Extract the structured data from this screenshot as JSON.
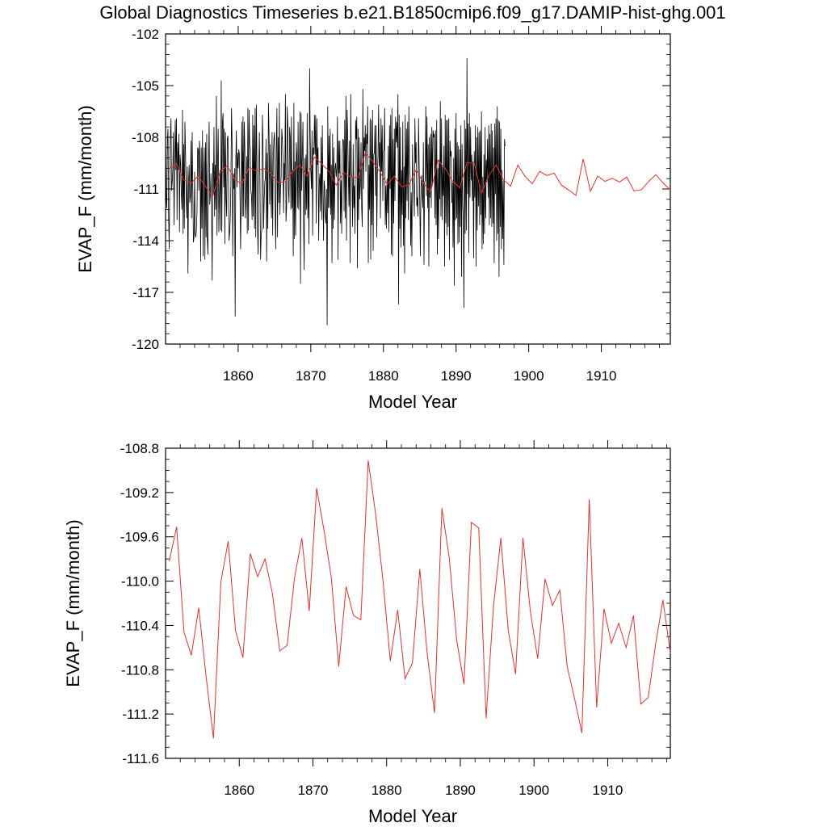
{
  "chart_data": [
    {
      "type": "line",
      "title": "Global Diagnostics Timeseries b.e21.B1850cmip6.f09_g17.DAMIP-hist-ghg.001",
      "xlabel": "Model Year",
      "ylabel": "EVAP_F (mm/month)",
      "xlim": [
        1850,
        1919.5
      ],
      "ylim": [
        -120,
        -102
      ],
      "yticks": [
        "-120",
        "-117",
        "-114",
        "-111",
        "-108",
        "-105",
        "-102"
      ],
      "xticks": [
        "1860",
        "1870",
        "1880",
        "1890",
        "1900",
        "1910"
      ],
      "grid": false,
      "series": [
        {
          "color": "#000000",
          "x_start": 1850.0,
          "x_step": 0.08333,
          "values": [
            -107.9,
            -111.4,
            -112.1,
            -108.1,
            -107.5,
            -112.5,
            -114.5,
            -110.5,
            -107.9,
            -106.9,
            -111.1,
            -110.6,
            -109.8,
            -107.7,
            -113.1,
            -110.0,
            -107.0,
            -109.9,
            -106.9,
            -112.8,
            -108.3,
            -109.9,
            -107.8,
            -113.5,
            -109.0,
            -109.6,
            -111.3,
            -112.2,
            -106.4,
            -113.6,
            -108.4,
            -113.3,
            -107.1,
            -108.9,
            -111.2,
            -112.7,
            -109.7,
            -115.9,
            -110.6,
            -109.6,
            -111.8,
            -111.4,
            -108.2,
            -112.7,
            -107.7,
            -111.0,
            -114.1,
            -113.8,
            -110.0,
            -113.6,
            -113.8,
            -113.4,
            -112.2,
            -108.6,
            -108.7,
            -111.1,
            -108.2,
            -109.1,
            -115.2,
            -108.6,
            -113.3,
            -107.6,
            -114.9,
            -110.0,
            -108.6,
            -115.1,
            -108.3,
            -113.8,
            -107.8,
            -113.9,
            -114.8,
            -109.9,
            -107.1,
            -111.9,
            -111.3,
            -110.1,
            -111.9,
            -116.3,
            -109.5,
            -111.3,
            -107.4,
            -112.6,
            -109.6,
            -112.2,
            -105.6,
            -113.7,
            -109.4,
            -107.5,
            -113.5,
            -111.4,
            -109.9,
            -113.4,
            -104.7,
            -113.5,
            -107.1,
            -106.6,
            -110.9,
            -107.5,
            -114.2,
            -107.7,
            -111.6,
            -112.6,
            -108.1,
            -107.9,
            -110.3,
            -114.0,
            -113.5,
            -112.6,
            -110.5,
            -106.3,
            -108.4,
            -114.9,
            -110.1,
            -111.0,
            -109.8,
            -118.4,
            -109.4,
            -107.6,
            -110.9,
            -108.9,
            -109.8,
            -108.7,
            -109.0,
            -111.5,
            -114.5,
            -111.2,
            -107.1,
            -112.6,
            -106.8,
            -112.6,
            -107.1,
            -108.6,
            -112.7,
            -111.6,
            -109.1,
            -113.6,
            -106.3,
            -113.4,
            -106.4,
            -108.4,
            -108.7,
            -111.1,
            -111.4,
            -112.8,
            -106.7,
            -112.6,
            -107.3,
            -113.3,
            -106.3,
            -113.8,
            -106.1,
            -109.3,
            -113.4,
            -114.8,
            -109.9,
            -107.7,
            -110.7,
            -115.1,
            -113.6,
            -113.4,
            -106.7,
            -108.4,
            -113.3,
            -111.6,
            -110.6,
            -110.3,
            -108.1,
            -115.2,
            -108.9,
            -113.3,
            -106.0,
            -107.8,
            -111.9,
            -108.4,
            -111.2,
            -112.7,
            -107.7,
            -113.7,
            -109.1,
            -108.1,
            -107.7,
            -111.8,
            -114.5,
            -108.8,
            -106.3,
            -113.8,
            -108.0,
            -111.8,
            -106.0,
            -112.5,
            -110.9,
            -110.3,
            -107.5,
            -108.1,
            -109.2,
            -112.4,
            -109.5,
            -110.5,
            -105.5,
            -112.9,
            -112.0,
            -106.2,
            -107.3,
            -111.0,
            -111.8,
            -107.4,
            -108.0,
            -112.2,
            -106.8,
            -112.1,
            -109.9,
            -114.9,
            -106.0,
            -113.9,
            -109.4,
            -113.7,
            -108.3,
            -109.2,
            -112.1,
            -107.1,
            -112.2,
            -110.6,
            -106.5,
            -116.5,
            -106.6,
            -111.1,
            -109.0,
            -107.1,
            -112.9,
            -115.7,
            -109.2,
            -112.5,
            -109.0,
            -112.2,
            -106.6,
            -112.7,
            -110.0,
            -114.2,
            -104.0,
            -107.9,
            -110.0,
            -111.0,
            -107.6,
            -113.7,
            -108.6,
            -109.0,
            -106.7,
            -109.0,
            -106.7,
            -113.0,
            -106.9,
            -109.6,
            -108.6,
            -114.0,
            -110.6,
            -110.1,
            -112.3,
            -108.0,
            -112.8,
            -107.3,
            -111.1,
            -114.0,
            -110.5,
            -110.9,
            -112.6,
            -113.0,
            -111.0,
            -118.9,
            -106.2,
            -112.1,
            -107.9,
            -112.1,
            -107.5,
            -112.5,
            -109.6,
            -115.3,
            -107.8,
            -113.3,
            -108.6,
            -112.8,
            -109.8,
            -109.5,
            -110.3,
            -109.8,
            -106.8,
            -115.1,
            -108.2,
            -110.1,
            -108.2,
            -113.0,
            -110.5,
            -113.6,
            -108.9,
            -108.1,
            -108.2,
            -112.3,
            -107.0,
            -112.7,
            -105.6,
            -114.0,
            -106.4,
            -107.9,
            -110.1,
            -112.0,
            -108.2,
            -115.3,
            -105.5,
            -110.0,
            -110.4,
            -113.2,
            -108.4,
            -112.1,
            -110.8,
            -113.6,
            -107.0,
            -108.1,
            -106.8,
            -115.6,
            -107.5,
            -112.8,
            -108.0,
            -111.6,
            -110.7,
            -108.3,
            -112.1,
            -113.2,
            -105.2,
            -111.0,
            -108.0,
            -108.8,
            -107.3,
            -110.0,
            -107.8,
            -108.4,
            -106.2,
            -115.3,
            -109.6,
            -112.2,
            -106.9,
            -115.1,
            -107.0,
            -113.1,
            -106.4,
            -114.6,
            -109.0,
            -108.9,
            -107.3,
            -111.4,
            -107.3,
            -113.8,
            -110.1,
            -109.1,
            -106.1,
            -109.7,
            -108.3,
            -112.7,
            -106.9,
            -110.0,
            -107.3,
            -111.7,
            -108.8,
            -108.7,
            -106.3,
            -113.1,
            -110.8,
            -113.3,
            -110.4,
            -112.4,
            -108.5,
            -113.5,
            -107.3,
            -111.0,
            -106.7,
            -114.8,
            -106.3,
            -114.9,
            -108.1,
            -113.0,
            -107.5,
            -111.7,
            -106.8,
            -108.3,
            -107.1,
            -108.6,
            -105.5,
            -117.7,
            -106.7,
            -113.3,
            -107.4,
            -114.4,
            -109.9,
            -112.5,
            -107.1,
            -114.3,
            -109.7,
            -115.9,
            -106.7,
            -112.7,
            -107.5,
            -111.7,
            -107.1,
            -112.8,
            -106.2,
            -109.4,
            -110.2,
            -114.3,
            -111.2,
            -114.9,
            -108.4,
            -110.5,
            -110.8,
            -112.6,
            -106.9,
            -109.5,
            -108.3,
            -112.0,
            -111.5,
            -112.6,
            -106.9,
            -109.5,
            -111.7,
            -114.9,
            -110.9,
            -110.2,
            -111.4,
            -112.1,
            -108.3,
            -115.4,
            -110.6,
            -110.5,
            -106.2,
            -111.4,
            -106.8,
            -112.1,
            -108.4,
            -115.5,
            -108.0,
            -111.5,
            -107.8,
            -112.1,
            -107.4,
            -110.8,
            -107.6,
            -108.0,
            -107.8,
            -112.7,
            -107.6,
            -113.1,
            -107.0,
            -114.8,
            -109.8,
            -113.9,
            -109.3,
            -111.6,
            -105.9,
            -112.6,
            -106.9,
            -112.8,
            -109.7,
            -111.4,
            -108.5,
            -115.5,
            -106.7,
            -113.0,
            -107.0,
            -113.7,
            -107.0,
            -113.2,
            -106.9,
            -115.1,
            -108.2,
            -109.1,
            -108.8,
            -111.8,
            -110.6,
            -114.4,
            -109.2,
            -116.6,
            -107.5,
            -112.8,
            -106.6,
            -112.7,
            -108.3,
            -114.2,
            -108.5,
            -114.1,
            -108.7,
            -113.2,
            -107.3,
            -116.1,
            -108.4,
            -111.8,
            -112.9,
            -117.9,
            -107.0,
            -113.6,
            -107.5,
            -113.4,
            -103.4,
            -111.3,
            -107.2,
            -114.7,
            -106.6,
            -111.5,
            -107.4,
            -110.5,
            -109.0,
            -111.7,
            -109.4,
            -115.0,
            -108.8,
            -111.5,
            -107.3,
            -115.5,
            -108.0,
            -113.4,
            -107.4,
            -112.0,
            -107.7,
            -113.1,
            -107.6,
            -112.5,
            -106.5,
            -114.5,
            -110.3,
            -114.2,
            -109.0,
            -113.6,
            -107.4,
            -112.7,
            -109.3,
            -110.6,
            -108.1,
            -111.5,
            -107.3,
            -113.1,
            -107.8,
            -112.7,
            -107.2,
            -113.2,
            -107.6,
            -113.0,
            -108.6,
            -115.3,
            -107.2,
            -111.3,
            -106.9,
            -114.0,
            -106.2,
            -113.6,
            -107.0,
            -116.1,
            -107.1,
            -113.2,
            -107.5,
            -114.5,
            -109.9,
            -113.9,
            -110.5,
            -115.4,
            -108.1,
            -108.5
          ]
        },
        {
          "color": "#e8312b",
          "x": [
            1850.5,
            1851.5,
            1852.5,
            1853.5,
            1854.5,
            1855.5,
            1856.5,
            1857.5,
            1858.5,
            1859.5,
            1860.5,
            1861.5,
            1862.5,
            1863.5,
            1864.5,
            1865.5,
            1866.5,
            1867.5,
            1868.5,
            1869.5,
            1870.5,
            1871.5,
            1872.5,
            1873.5,
            1874.5,
            1875.5,
            1876.5,
            1877.5,
            1878.5,
            1879.5,
            1880.5,
            1881.5,
            1882.5,
            1883.5,
            1884.5,
            1885.5,
            1886.5,
            1887.5,
            1888.5,
            1889.5,
            1890.5,
            1891.5,
            1892.5,
            1893.5,
            1894.5,
            1895.5,
            1896.5,
            1897.5,
            1898.5,
            1899.5,
            1900.5,
            1901.5,
            1902.5,
            1903.5,
            1904.5,
            1905.5,
            1906.5,
            1907.5,
            1908.5,
            1909.5,
            1910.5,
            1911.5,
            1912.5,
            1913.5,
            1914.5,
            1915.5,
            1916.5,
            1917.5,
            1918.5,
            1919.5
          ],
          "values": [
            -109.82,
            -109.51,
            -110.46,
            -110.67,
            -110.24,
            -110.86,
            -111.42,
            -110.01,
            -109.64,
            -110.45,
            -110.69,
            -109.75,
            -109.96,
            -109.8,
            -110.11,
            -110.63,
            -110.58,
            -109.97,
            -109.61,
            -110.27,
            -109.16,
            -109.54,
            -109.97,
            -110.77,
            -110.05,
            -110.31,
            -110.35,
            -108.91,
            -109.39,
            -109.99,
            -110.72,
            -110.26,
            -110.88,
            -110.74,
            -109.89,
            -110.65,
            -111.19,
            -109.34,
            -109.79,
            -110.53,
            -110.93,
            -109.47,
            -109.52,
            -111.24,
            -110.23,
            -109.61,
            -110.44,
            -110.84,
            -109.61,
            -110.27,
            -110.7,
            -109.98,
            -110.22,
            -110.08,
            -110.77,
            -111.06,
            -111.37,
            -109.26,
            -111.14,
            -110.25,
            -110.56,
            -110.38,
            -110.6,
            -110.31,
            -111.11,
            -111.05,
            -110.57,
            -110.17,
            -110.65,
            -111.06
          ]
        }
      ]
    },
    {
      "type": "line",
      "title": "",
      "xlabel": "Model Year",
      "ylabel": "EVAP_F (mm/month)",
      "xlim": [
        1850,
        1918.5
      ],
      "ylim": [
        -111.6,
        -108.8
      ],
      "yticks": [
        "-111.6",
        "-111.2",
        "-110.8",
        "-110.4",
        "-110.0",
        "-109.6",
        "-109.2",
        "-108.8"
      ],
      "xticks": [
        "1860",
        "1870",
        "1880",
        "1890",
        "1900",
        "1910"
      ],
      "grid": false,
      "series": [
        {
          "color": "#e8312b",
          "x": [
            1850.5,
            1851.5,
            1852.5,
            1853.5,
            1854.5,
            1855.5,
            1856.5,
            1857.5,
            1858.5,
            1859.5,
            1860.5,
            1861.5,
            1862.5,
            1863.5,
            1864.5,
            1865.5,
            1866.5,
            1867.5,
            1868.5,
            1869.5,
            1870.5,
            1871.5,
            1872.5,
            1873.5,
            1874.5,
            1875.5,
            1876.5,
            1877.5,
            1878.5,
            1879.5,
            1880.5,
            1881.5,
            1882.5,
            1883.5,
            1884.5,
            1885.5,
            1886.5,
            1887.5,
            1888.5,
            1889.5,
            1890.5,
            1891.5,
            1892.5,
            1893.5,
            1894.5,
            1895.5,
            1896.5,
            1897.5,
            1898.5,
            1899.5,
            1900.5,
            1901.5,
            1902.5,
            1903.5,
            1904.5,
            1905.5,
            1906.5,
            1907.5,
            1908.5,
            1909.5,
            1910.5,
            1911.5,
            1912.5,
            1913.5,
            1914.5,
            1915.5,
            1916.5,
            1917.5,
            1918.5
          ],
          "values": [
            -109.82,
            -109.51,
            -110.46,
            -110.67,
            -110.24,
            -110.86,
            -111.42,
            -110.01,
            -109.64,
            -110.45,
            -110.69,
            -109.75,
            -109.96,
            -109.8,
            -110.11,
            -110.63,
            -110.58,
            -109.97,
            -109.61,
            -110.27,
            -109.16,
            -109.54,
            -109.97,
            -110.77,
            -110.05,
            -110.31,
            -110.35,
            -108.91,
            -109.39,
            -109.99,
            -110.72,
            -110.26,
            -110.88,
            -110.74,
            -109.89,
            -110.65,
            -111.19,
            -109.34,
            -109.79,
            -110.53,
            -110.93,
            -109.47,
            -109.52,
            -111.24,
            -110.23,
            -109.61,
            -110.44,
            -110.84,
            -109.61,
            -110.27,
            -110.7,
            -109.98,
            -110.22,
            -110.08,
            -110.77,
            -111.06,
            -111.37,
            -109.26,
            -111.14,
            -110.25,
            -110.56,
            -110.38,
            -110.6,
            -110.31,
            -111.11,
            -111.05,
            -110.57,
            -110.17,
            -110.65
          ]
        }
      ]
    }
  ]
}
